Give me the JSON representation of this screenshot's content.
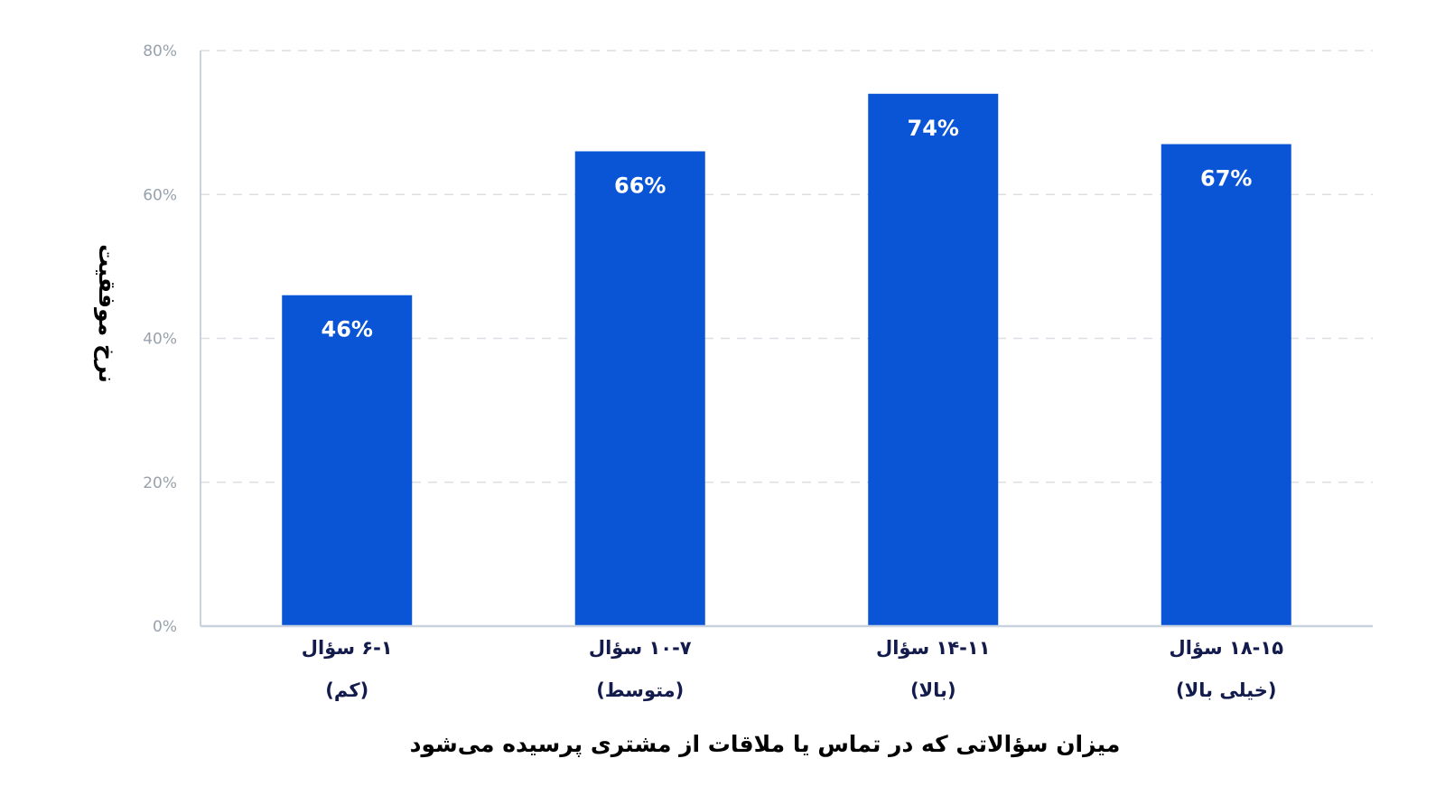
{
  "chart_data": {
    "type": "bar",
    "categories": [
      {
        "line1": "۶-۱ سؤال",
        "line2": "(کم)"
      },
      {
        "line1": "۱۰-۷ سؤال",
        "line2": "(متوسط)"
      },
      {
        "line1": "۱۴-۱۱ سؤال",
        "line2": "(بالا)"
      },
      {
        "line1": "۱۸-۱۵ سؤال",
        "line2": "(خیلی بالا)"
      }
    ],
    "values": [
      46,
      66,
      74,
      67
    ],
    "data_labels": [
      "46%",
      "66%",
      "74%",
      "67%"
    ],
    "xlabel": "میزان سؤالاتی که در تماس یا ملاقات از مشتری پرسیده می‌شود",
    "ylabel": "نرخ موفقیت",
    "ylim": [
      0,
      80
    ],
    "yticks": [
      "0%",
      "20%",
      "40%",
      "60%",
      "80%"
    ],
    "grid": true,
    "legend": "none"
  },
  "colors": {
    "bar": "#0a55d6",
    "grid": "#dcdfe3",
    "axis": "#c9d3e0",
    "tick_text": "#98a2ad",
    "category_text": "#131b4d",
    "title_text": "#000000"
  }
}
